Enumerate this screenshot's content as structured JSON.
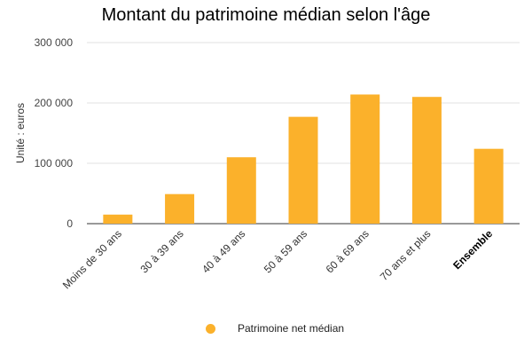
{
  "chart_data": {
    "type": "bar",
    "title": "Montant du patrimoine médian selon l'âge",
    "ylabel": "Unité : euros",
    "xlabel": "",
    "categories": [
      "Moins de 30 ans",
      "30 à 39 ans",
      "40 à 49 ans",
      "50 à 59 ans",
      "60 à 69 ans",
      "70 ans et plus",
      "Ensemble"
    ],
    "bold_categories": [
      "Ensemble"
    ],
    "series": [
      {
        "name": "Patrimoine net médian",
        "values": [
          15000,
          49000,
          110000,
          177000,
          214000,
          210000,
          124000
        ]
      }
    ],
    "ylim": [
      0,
      300000
    ],
    "yticks": [
      0,
      100000,
      200000,
      300000
    ],
    "ytick_labels": [
      "0",
      "100 000",
      "200 000",
      "300 000"
    ],
    "grid": true,
    "legend_position": "bottom",
    "bar_color": "#fbb12b"
  }
}
